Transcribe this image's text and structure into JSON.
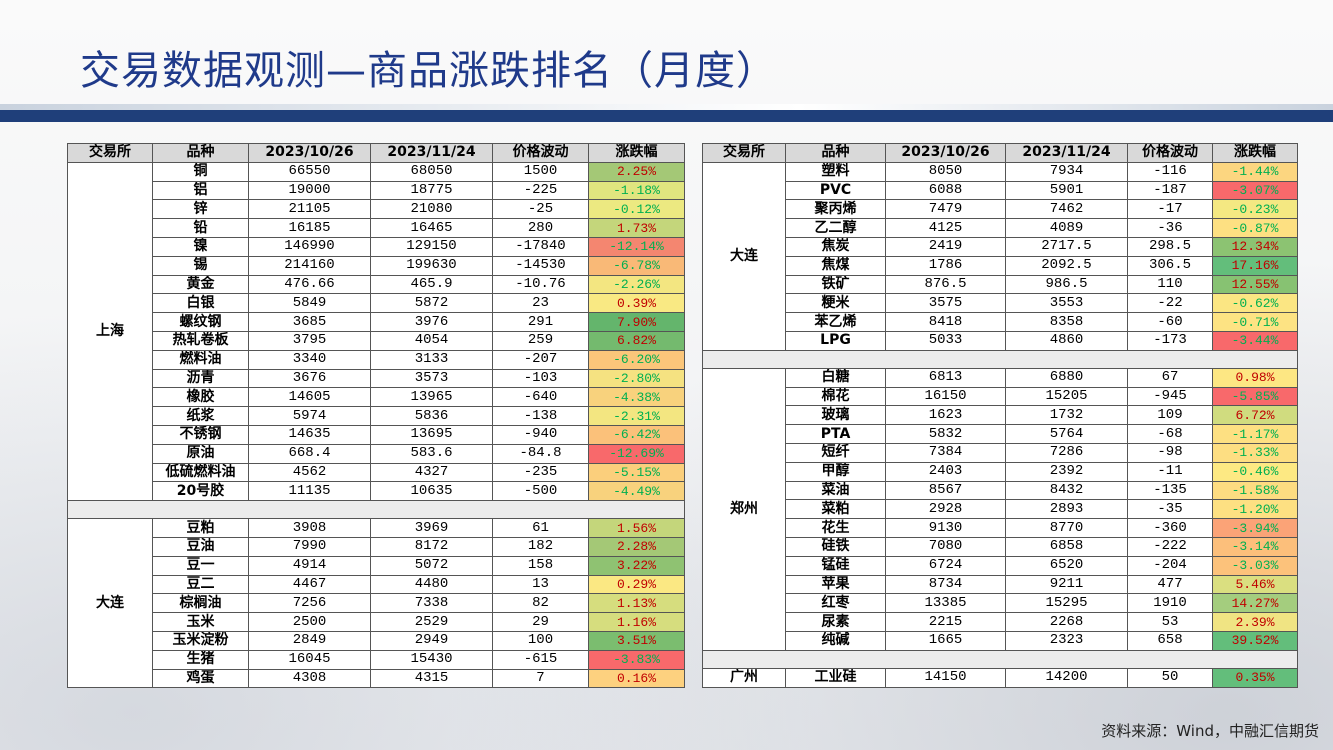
{
  "title": "交易数据观测—商品涨跌排名（月度）",
  "source": "资料来源：Wind，中融汇信期货",
  "headers": [
    "交易所",
    "品种",
    "2023/10/26",
    "2023/11/24",
    "价格波动",
    "涨跌幅"
  ],
  "left_groups": [
    {
      "exchange": "上海",
      "rows": [
        {
          "name": "铜",
          "p1": "66550",
          "p2": "68050",
          "chg": "1500",
          "pct": "2.25%",
          "fill": "#a4c876"
        },
        {
          "name": "铝",
          "p1": "19000",
          "p2": "18775",
          "chg": "-225",
          "pct": "-1.18%",
          "fill": "#e0e57f"
        },
        {
          "name": "锌",
          "p1": "21105",
          "p2": "21080",
          "chg": "-25",
          "pct": "-0.12%",
          "fill": "#ece981"
        },
        {
          "name": "铅",
          "p1": "16185",
          "p2": "16465",
          "chg": "280",
          "pct": "1.73%",
          "fill": "#c4d67b"
        },
        {
          "name": "镍",
          "p1": "146990",
          "p2": "129150",
          "chg": "-17840",
          "pct": "-12.14%",
          "fill": "#f48670"
        },
        {
          "name": "锡",
          "p1": "214160",
          "p2": "199630",
          "chg": "-14530",
          "pct": "-6.78%",
          "fill": "#f9b977"
        },
        {
          "name": "黄金",
          "p1": "476.66",
          "p2": "465.9",
          "chg": "-10.76",
          "pct": "-2.26%",
          "fill": "#f3e681"
        },
        {
          "name": "白银",
          "p1": "5849",
          "p2": "5872",
          "chg": "23",
          "pct": "0.39%",
          "fill": "#f9e983"
        },
        {
          "name": "螺纹钢",
          "p1": "3685",
          "p2": "3976",
          "chg": "291",
          "pct": "7.90%",
          "fill": "#64b56c"
        },
        {
          "name": "热轧卷板",
          "p1": "3795",
          "p2": "4054",
          "chg": "259",
          "pct": "6.82%",
          "fill": "#74ba6e"
        },
        {
          "name": "燃料油",
          "p1": "3340",
          "p2": "3133",
          "chg": "-207",
          "pct": "-6.20%",
          "fill": "#fbc67a"
        },
        {
          "name": "沥青",
          "p1": "3676",
          "p2": "3573",
          "chg": "-103",
          "pct": "-2.80%",
          "fill": "#f5e281"
        },
        {
          "name": "橡胶",
          "p1": "14605",
          "p2": "13965",
          "chg": "-640",
          "pct": "-4.38%",
          "fill": "#f8d27d"
        },
        {
          "name": "纸浆",
          "p1": "5974",
          "p2": "5836",
          "chg": "-138",
          "pct": "-2.31%",
          "fill": "#f3e681"
        },
        {
          "name": "不锈钢",
          "p1": "14635",
          "p2": "13695",
          "chg": "-940",
          "pct": "-6.42%",
          "fill": "#fbc17a"
        },
        {
          "name": "原油",
          "p1": "668.4",
          "p2": "583.6",
          "chg": "-84.8",
          "pct": "-12.69%",
          "fill": "#f8696b"
        },
        {
          "name": "低硫燃料油",
          "p1": "4562",
          "p2": "4327",
          "chg": "-235",
          "pct": "-5.15%",
          "fill": "#fbcf7c"
        },
        {
          "name": "20号胶",
          "p1": "11135",
          "p2": "10635",
          "chg": "-500",
          "pct": "-4.49%",
          "fill": "#f8d27d"
        }
      ]
    },
    {
      "exchange": "大连",
      "rows": [
        {
          "name": "豆粕",
          "p1": "3908",
          "p2": "3969",
          "chg": "61",
          "pct": "1.56%",
          "fill": "#c4d67b"
        },
        {
          "name": "豆油",
          "p1": "7990",
          "p2": "8172",
          "chg": "182",
          "pct": "2.28%",
          "fill": "#a4c876"
        },
        {
          "name": "豆一",
          "p1": "4914",
          "p2": "5072",
          "chg": "158",
          "pct": "3.22%",
          "fill": "#8fc272"
        },
        {
          "name": "豆二",
          "p1": "4467",
          "p2": "4480",
          "chg": "13",
          "pct": "0.29%",
          "fill": "#fbe883"
        },
        {
          "name": "棕榈油",
          "p1": "7256",
          "p2": "7338",
          "chg": "82",
          "pct": "1.13%",
          "fill": "#d6dd7e"
        },
        {
          "name": "玉米",
          "p1": "2500",
          "p2": "2529",
          "chg": "29",
          "pct": "1.16%",
          "fill": "#d6dd7e"
        },
        {
          "name": "玉米淀粉",
          "p1": "2849",
          "p2": "2949",
          "chg": "100",
          "pct": "3.51%",
          "fill": "#7bbd6f"
        },
        {
          "name": "生猪",
          "p1": "16045",
          "p2": "15430",
          "chg": "-615",
          "pct": "-3.83%",
          "fill": "#f8696b"
        },
        {
          "name": "鸡蛋",
          "p1": "4308",
          "p2": "4315",
          "chg": "7",
          "pct": "0.16%",
          "fill": "#fdd17f"
        }
      ]
    }
  ],
  "right_groups": [
    {
      "exchange": "大连",
      "rows": [
        {
          "name": "塑料",
          "p1": "8050",
          "p2": "7934",
          "chg": "-116",
          "pct": "-1.44%",
          "fill": "#fcd680"
        },
        {
          "name": "PVC",
          "p1": "6088",
          "p2": "5901",
          "chg": "-187",
          "pct": "-3.07%",
          "fill": "#f8696b"
        },
        {
          "name": "聚丙烯",
          "p1": "7479",
          "p2": "7462",
          "chg": "-17",
          "pct": "-0.23%",
          "fill": "#f4e882"
        },
        {
          "name": "乙二醇",
          "p1": "4125",
          "p2": "4089",
          "chg": "-36",
          "pct": "-0.87%",
          "fill": "#fde082"
        },
        {
          "name": "焦炭",
          "p1": "2419",
          "p2": "2717.5",
          "chg": "298.5",
          "pct": "12.34%",
          "fill": "#8cc372"
        },
        {
          "name": "焦煤",
          "p1": "1786",
          "p2": "2092.5",
          "chg": "306.5",
          "pct": "17.16%",
          "fill": "#63be7b"
        },
        {
          "name": "铁矿",
          "p1": "876.5",
          "p2": "986.5",
          "chg": "110",
          "pct": "12.55%",
          "fill": "#87c272"
        },
        {
          "name": "粳米",
          "p1": "3575",
          "p2": "3553",
          "chg": "-22",
          "pct": "-0.62%",
          "fill": "#fbe683"
        },
        {
          "name": "苯乙烯",
          "p1": "8418",
          "p2": "8358",
          "chg": "-60",
          "pct": "-0.71%",
          "fill": "#fde383"
        },
        {
          "name": "LPG",
          "p1": "5033",
          "p2": "4860",
          "chg": "-173",
          "pct": "-3.44%",
          "fill": "#f8696b"
        }
      ]
    },
    {
      "exchange": "郑州",
      "rows": [
        {
          "name": "白糖",
          "p1": "6813",
          "p2": "6880",
          "chg": "67",
          "pct": "0.98%",
          "fill": "#fde783"
        },
        {
          "name": "棉花",
          "p1": "16150",
          "p2": "15205",
          "chg": "-945",
          "pct": "-5.85%",
          "fill": "#f8696b"
        },
        {
          "name": "玻璃",
          "p1": "1623",
          "p2": "1732",
          "chg": "109",
          "pct": "6.72%",
          "fill": "#d0dc7f"
        },
        {
          "name": "PTA",
          "p1": "5832",
          "p2": "5764",
          "chg": "-68",
          "pct": "-1.17%",
          "fill": "#fde082"
        },
        {
          "name": "短纤",
          "p1": "7384",
          "p2": "7286",
          "chg": "-98",
          "pct": "-1.33%",
          "fill": "#fdde82"
        },
        {
          "name": "甲醇",
          "p1": "2403",
          "p2": "2392",
          "chg": "-11",
          "pct": "-0.46%",
          "fill": "#fde983"
        },
        {
          "name": "菜油",
          "p1": "8567",
          "p2": "8432",
          "chg": "-135",
          "pct": "-1.58%",
          "fill": "#fddc81"
        },
        {
          "name": "菜粕",
          "p1": "2928",
          "p2": "2893",
          "chg": "-35",
          "pct": "-1.20%",
          "fill": "#fde082"
        },
        {
          "name": "花生",
          "p1": "9130",
          "p2": "8770",
          "chg": "-360",
          "pct": "-3.94%",
          "fill": "#fba377"
        },
        {
          "name": "硅铁",
          "p1": "7080",
          "p2": "6858",
          "chg": "-222",
          "pct": "-3.14%",
          "fill": "#fcbf7b"
        },
        {
          "name": "锰硅",
          "p1": "6724",
          "p2": "6520",
          "chg": "-204",
          "pct": "-3.03%",
          "fill": "#fcc27b"
        },
        {
          "name": "苹果",
          "p1": "8734",
          "p2": "9211",
          "chg": "477",
          "pct": "5.46%",
          "fill": "#dadf80"
        },
        {
          "name": "红枣",
          "p1": "13385",
          "p2": "15295",
          "chg": "1910",
          "pct": "14.27%",
          "fill": "#a4cd7e"
        },
        {
          "name": "尿素",
          "p1": "2215",
          "p2": "2268",
          "chg": "53",
          "pct": "2.39%",
          "fill": "#f0e483"
        },
        {
          "name": "纯碱",
          "p1": "1665",
          "p2": "2323",
          "chg": "658",
          "pct": "39.52%",
          "fill": "#63be7b"
        }
      ]
    },
    {
      "exchange": "广州",
      "rows": [
        {
          "name": "工业硅",
          "p1": "14150",
          "p2": "14200",
          "chg": "50",
          "pct": "0.35%",
          "fill": "#63be7b"
        }
      ]
    }
  ],
  "colors": {
    "title": "#1f3a8a",
    "header_bg": "#d9d9d9",
    "band": "#1f3f7a",
    "up_text": "#c00000",
    "down_text": "#00b050",
    "separator_bg": "#ececec"
  }
}
